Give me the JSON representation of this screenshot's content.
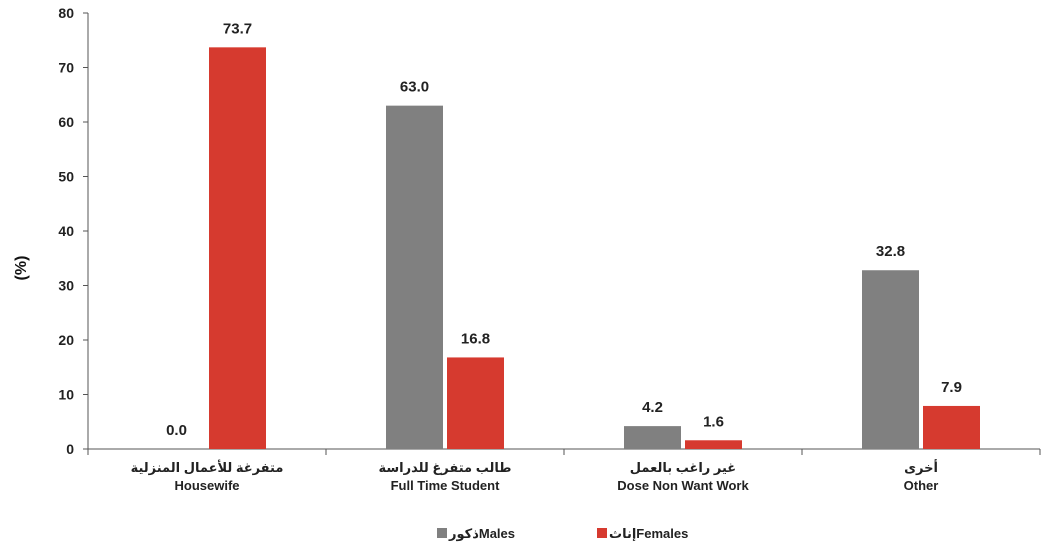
{
  "chart_data": {
    "type": "bar",
    "ylabel": "(%)",
    "ylim": [
      0,
      80
    ],
    "yticks": [
      0,
      10,
      20,
      30,
      40,
      50,
      60,
      70,
      80
    ],
    "categories": [
      {
        "ar": "متفرغة للأعمال المنزلية",
        "en": "Housewife"
      },
      {
        "ar": "طالب متفرغ للدراسة",
        "en": "Full Time Student"
      },
      {
        "ar": "غير راغب بالعمل",
        "en": "Dose Non Want Work"
      },
      {
        "ar": "أخرى",
        "en": "Other"
      }
    ],
    "series": [
      {
        "name": "ذكورMales",
        "color": "#808080",
        "values": [
          0.0,
          63.0,
          4.2,
          32.8
        ]
      },
      {
        "name": "إناثFemales",
        "color": "#d63a2f",
        "values": [
          73.7,
          16.8,
          1.6,
          7.9
        ]
      }
    ],
    "grid": false,
    "legend_position": "bottom-center"
  }
}
